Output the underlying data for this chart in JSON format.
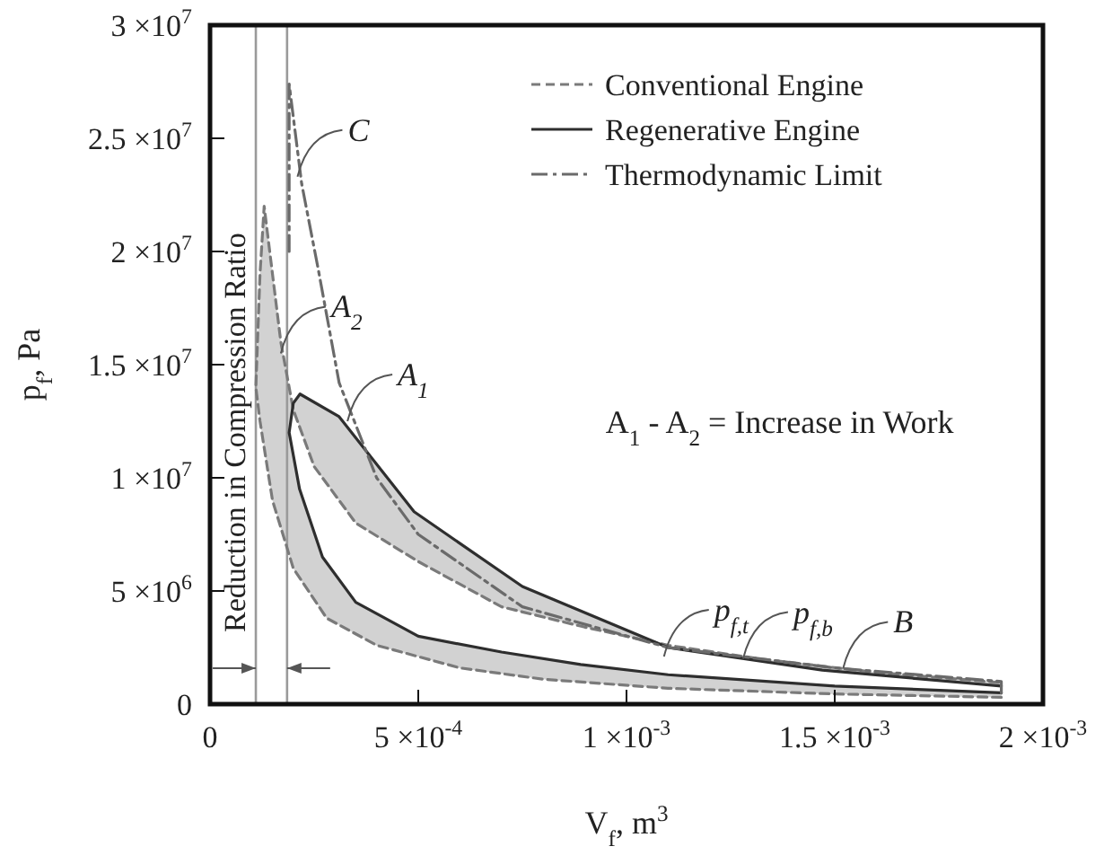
{
  "chart_data": {
    "type": "line",
    "xlabel": "V$_{f}$, m$^{3}$",
    "ylabel": "p$_{f}$, Pa",
    "xlim": [
      0,
      0.002
    ],
    "ylim": [
      0,
      30000000
    ],
    "xticks": [
      0,
      {
        "value": 0.0005,
        "label": "5 ×10$^{-4}$"
      },
      {
        "value": 0.001,
        "label": "1 ×10$^{-3}$"
      },
      {
        "value": 0.0015,
        "label": "1.5 ×10$^{-3}$"
      },
      {
        "value": 0.002,
        "label": "2 ×10$^{-3}$"
      }
    ],
    "yticks": [
      0,
      {
        "value": 5000000,
        "label": "5 ×10$^{6}$"
      },
      {
        "value": 10000000,
        "label": "1 ×10$^{7}$"
      },
      {
        "value": 15000000,
        "label": "1.5 ×10$^{7}$"
      },
      {
        "value": 20000000,
        "label": "2 ×10$^{7}$"
      },
      {
        "value": 25000000,
        "label": "2.5 ×10$^{7}$"
      },
      {
        "value": 30000000,
        "label": "3 ×10$^{7}$"
      }
    ],
    "legend": "top right",
    "grid": false,
    "series": [
      {
        "name": "Conventional Engine",
        "color": "#7a7a7a",
        "line_style": "dashed",
        "x": [
          0.0019,
          0.0015,
          0.0011,
          0.0008,
          0.0006,
          0.0004,
          0.00028,
          0.0002,
          0.00015,
          0.00012,
          0.00011,
          0.00012,
          0.00013,
          0.00015,
          0.00017,
          0.0002,
          0.00025,
          0.00035,
          0.0005,
          0.0007,
          0.0009,
          0.0011,
          0.00132,
          0.0016,
          0.0019
        ],
        "values": [
          300000,
          450000,
          700000,
          1100000,
          1600000,
          2600000,
          3800000,
          6000000,
          9000000,
          12500000,
          14000000,
          19000000,
          22000000,
          19000000,
          16000000,
          13000000,
          10500000,
          8000000,
          6300000,
          4300000,
          3400000,
          2600000,
          2000000,
          1400000,
          950000
        ]
      },
      {
        "name": "Regenerative Engine",
        "color": "#2e2e2e",
        "line_style": "solid",
        "x": [
          0.0019,
          0.0015,
          0.0011,
          0.00089,
          0.0007,
          0.0005,
          0.00035,
          0.00027,
          0.000215,
          0.00019,
          0.0002,
          0.000216,
          0.00031,
          0.00049,
          0.00075,
          0.0011,
          0.00147,
          0.0019
        ],
        "values": [
          500000,
          800000,
          1300000,
          1750000,
          2300000,
          3000000,
          4500000,
          6500000,
          9500000,
          12000000,
          13300000,
          13700000,
          12700000,
          8500000,
          5200000,
          2500000,
          1500000,
          800000
        ]
      },
      {
        "name": "Thermodynamic Limit",
        "color": "#6a6a6a",
        "line_style": "dashdot",
        "x": [
          0.00019,
          0.00019,
          0.00022,
          0.00026,
          0.00031,
          0.0004,
          0.0005,
          0.00075,
          0.0011,
          0.0015,
          0.0019,
          0.0019
        ],
        "values": [
          20000000,
          27400000,
          23000000,
          19200000,
          14200000,
          10000000,
          7500000,
          4300000,
          2500000,
          1600000,
          1000000,
          300000
        ]
      }
    ],
    "ref_lines": [
      {
        "axis": "x",
        "value": 0.00011,
        "color": "#9a9a9a"
      },
      {
        "axis": "x",
        "value": 0.000185,
        "color": "#9a9a9a"
      }
    ],
    "annotations": [
      {
        "text": "C",
        "x": 0.00021,
        "y": 23300000
      },
      {
        "text": "A$_{2}$",
        "x": 0.00017,
        "y": 15500000
      },
      {
        "text": "A$_{1}$",
        "x": 0.00033,
        "y": 12500000
      },
      {
        "text": "p$_{f,t}$",
        "x": 0.00109,
        "y": 2100000
      },
      {
        "text": "p$_{f,b}$",
        "x": 0.00128,
        "y": 2000000
      },
      {
        "text": "B",
        "x": 0.00152,
        "y": 1570000
      },
      "A$_{1}$ - A$_{2}$ = Increase in Work",
      "Reduction in Compression Ratio"
    ]
  }
}
